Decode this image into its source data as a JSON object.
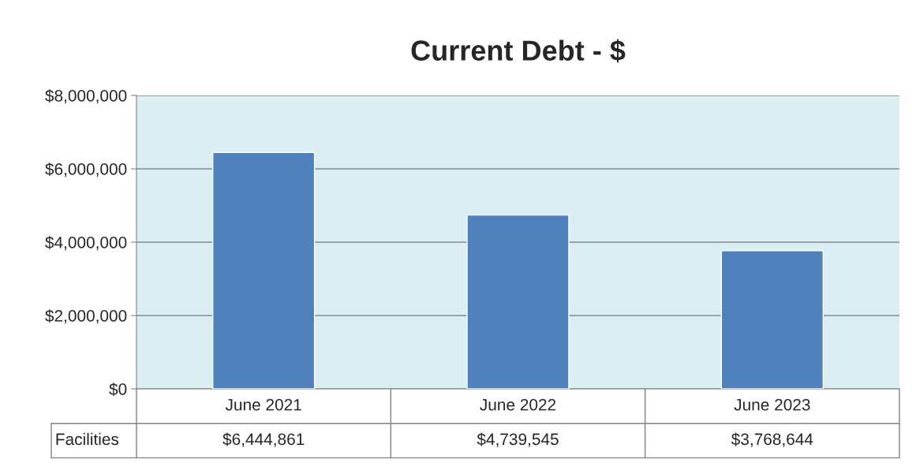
{
  "chart_data": {
    "type": "bar",
    "title": "Current Debt - $",
    "categories": [
      "June 2021",
      "June 2022",
      "June 2023"
    ],
    "series": [
      {
        "name": "Facilities",
        "color": "#4f81bd",
        "values": [
          6444861,
          4739545,
          3768644
        ],
        "value_labels": [
          "$6,444,861",
          "$4,739,545",
          "$3,768,644"
        ]
      }
    ],
    "ylim": [
      0,
      8000000
    ],
    "yticks": [
      {
        "value": 0,
        "label": "$0"
      },
      {
        "value": 2000000,
        "label": "$2,000,000"
      },
      {
        "value": 4000000,
        "label": "$4,000,000"
      },
      {
        "value": 6000000,
        "label": "$6,000,000"
      },
      {
        "value": 8000000,
        "label": "$8,000,000"
      }
    ],
    "grid": "y",
    "legend": false
  }
}
